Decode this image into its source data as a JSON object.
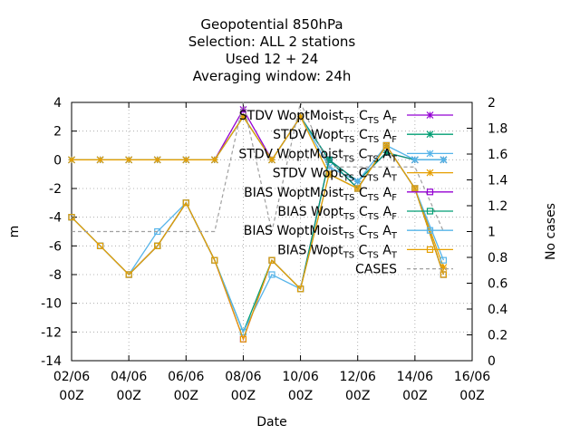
{
  "chart_data": {
    "type": "line",
    "title_lines": [
      "Geopotential 850hPa",
      "Selection: ALL      2 stations",
      "Used  12 + 24",
      "Averaging window: 24h"
    ],
    "xlabel": "Date",
    "ylabel": "m",
    "y2label": "No cases",
    "xlim": [
      0,
      14
    ],
    "ylim": [
      -14,
      4
    ],
    "y2lim": [
      0,
      2
    ],
    "x_ticks": [
      {
        "x": 0,
        "label": [
          "02/06",
          "00Z"
        ]
      },
      {
        "x": 2,
        "label": [
          "04/06",
          "00Z"
        ]
      },
      {
        "x": 4,
        "label": [
          "06/06",
          "00Z"
        ]
      },
      {
        "x": 6,
        "label": [
          "08/06",
          "00Z"
        ]
      },
      {
        "x": 8,
        "label": [
          "10/06",
          "00Z"
        ]
      },
      {
        "x": 10,
        "label": [
          "12/06",
          "00Z"
        ]
      },
      {
        "x": 12,
        "label": [
          "14/06",
          "00Z"
        ]
      },
      {
        "x": 14,
        "label": [
          "16/06",
          "00Z"
        ]
      }
    ],
    "y_ticks": [
      4,
      2,
      0,
      -2,
      -4,
      -6,
      -8,
      -10,
      -12,
      -14
    ],
    "y2_ticks": [
      "2",
      "1.8",
      "1.6",
      "1.4",
      "1.2",
      "1",
      "0.8",
      "0.6",
      "0.4",
      "0.2",
      "0"
    ],
    "x": [
      0,
      1,
      2,
      3,
      4,
      5,
      6,
      7,
      8,
      9,
      10,
      11,
      12,
      13
    ],
    "grid": true,
    "legend_position": "top-right",
    "series": [
      {
        "name": "STDV WoptMoist",
        "sub": "TS",
        "mid": "C",
        "sub2": "TS",
        "end": "A",
        "sub3": "F",
        "color": "#9400d3",
        "marker": "star",
        "axis": "y",
        "values": [
          0,
          0,
          0,
          0,
          0,
          0,
          3.5,
          0,
          3,
          0,
          -1.5,
          0.5,
          0,
          0
        ]
      },
      {
        "name": "STDV Wopt",
        "sub": "TS",
        "mid": "C",
        "sub2": "TS",
        "end": "A",
        "sub3": "F",
        "color": "#009e73",
        "marker": "star",
        "axis": "y",
        "values": [
          0,
          0,
          0,
          0,
          0,
          0,
          3,
          0,
          3,
          0,
          -1.5,
          0.5,
          0,
          0
        ]
      },
      {
        "name": "STDV WoptMoist",
        "sub": "TS",
        "mid": "C",
        "sub2": "TS",
        "end": "A",
        "sub3": "T",
        "color": "#56b4e9",
        "marker": "star",
        "axis": "y",
        "values": [
          0,
          0,
          0,
          0,
          0,
          0,
          3,
          0,
          3,
          -0.5,
          -1.5,
          1,
          0,
          0
        ]
      },
      {
        "name": "STDV Wopt",
        "sub": "TS",
        "mid": "C",
        "sub2": "TS",
        "end": "A",
        "sub3": "T",
        "color": "#e69f00",
        "marker": "star",
        "axis": "y",
        "values": [
          0,
          0,
          0,
          0,
          0,
          0,
          3,
          0,
          3,
          -1,
          -2,
          1,
          -2,
          -7.5
        ]
      },
      {
        "name": "BIAS WoptMoist",
        "sub": "TS",
        "mid": "C",
        "sub2": "TS",
        "end": "A",
        "sub3": "F",
        "color": "#9400d3",
        "marker": "square",
        "axis": "y",
        "values": [
          -4,
          -6,
          -8,
          -6,
          -3,
          -7,
          -12.5,
          -7,
          -9,
          0,
          -2,
          1,
          -2,
          -8
        ]
      },
      {
        "name": "BIAS Wopt",
        "sub": "TS",
        "mid": "C",
        "sub2": "TS",
        "end": "A",
        "sub3": "F",
        "color": "#009e73",
        "marker": "square",
        "axis": "y",
        "values": [
          -4,
          -6,
          -8,
          -6,
          -3,
          -7,
          -12,
          -7,
          -9,
          0,
          -2,
          1,
          -2,
          -8
        ]
      },
      {
        "name": "BIAS WoptMoist",
        "sub": "TS",
        "mid": "C",
        "sub2": "TS",
        "end": "A",
        "sub3": "T",
        "color": "#56b4e9",
        "marker": "square",
        "axis": "y",
        "values": [
          -4,
          -6,
          -8,
          -5,
          -3,
          -7,
          -12,
          -8,
          -9,
          -1,
          -2,
          1,
          -2,
          -7
        ]
      },
      {
        "name": "BIAS Wopt",
        "sub": "TS",
        "mid": "C",
        "sub2": "TS",
        "end": "A",
        "sub3": "T",
        "color": "#e69f00",
        "marker": "square",
        "axis": "y",
        "values": [
          -4,
          -6,
          -8,
          -6,
          -3,
          -7,
          -12.5,
          -7,
          -9,
          -1,
          -2,
          1,
          -2,
          -8
        ]
      },
      {
        "name": "CASES",
        "color": "#a0a0a0",
        "marker": "none",
        "dashed": true,
        "axis": "y2",
        "values": [
          1,
          1,
          1,
          1,
          1,
          1,
          2,
          1,
          2,
          1.5,
          1.5,
          1.5,
          1.5,
          1
        ]
      }
    ]
  }
}
